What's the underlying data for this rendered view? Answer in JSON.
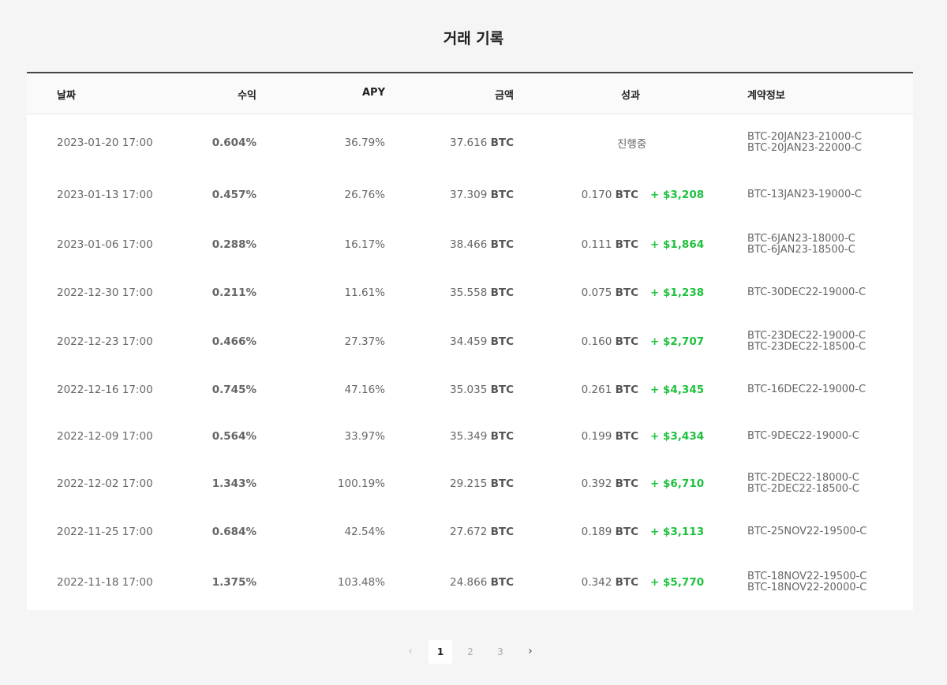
{
  "page": {
    "title": "거래 기록"
  },
  "table": {
    "headers": {
      "date": "날짜",
      "return": "수익",
      "apy": "APY",
      "amount": "금액",
      "performance": "성과",
      "contract": "계약정보"
    },
    "rows": [
      {
        "date": "2023-01-20 17:00",
        "return": "0.604%",
        "apy": "36.79%",
        "amount": "37.616",
        "amount_unit": "BTC",
        "perf_status": "진행중",
        "perf_btc": "",
        "perf_btc_unit": "",
        "perf_usd": "",
        "contracts": [
          "BTC-20JAN23-21000-C",
          "BTC-20JAN23-22000-C"
        ]
      },
      {
        "date": "2023-01-13 17:00",
        "return": "0.457%",
        "apy": "26.76%",
        "amount": "37.309",
        "amount_unit": "BTC",
        "perf_status": "",
        "perf_btc": "0.170",
        "perf_btc_unit": "BTC",
        "perf_usd": "+ $3,208",
        "contracts": [
          "BTC-13JAN23-19000-C"
        ]
      },
      {
        "date": "2023-01-06 17:00",
        "return": "0.288%",
        "apy": "16.17%",
        "amount": "38.466",
        "amount_unit": "BTC",
        "perf_status": "",
        "perf_btc": "0.111",
        "perf_btc_unit": "BTC",
        "perf_usd": "+ $1,864",
        "contracts": [
          "BTC-6JAN23-18000-C",
          "BTC-6JAN23-18500-C"
        ]
      },
      {
        "date": "2022-12-30 17:00",
        "return": "0.211%",
        "apy": "11.61%",
        "amount": "35.558",
        "amount_unit": "BTC",
        "perf_status": "",
        "perf_btc": "0.075",
        "perf_btc_unit": "BTC",
        "perf_usd": "+ $1,238",
        "contracts": [
          "BTC-30DEC22-19000-C"
        ]
      },
      {
        "date": "2022-12-23 17:00",
        "return": "0.466%",
        "apy": "27.37%",
        "amount": "34.459",
        "amount_unit": "BTC",
        "perf_status": "",
        "perf_btc": "0.160",
        "perf_btc_unit": "BTC",
        "perf_usd": "+ $2,707",
        "contracts": [
          "BTC-23DEC22-19000-C",
          "BTC-23DEC22-18500-C"
        ]
      },
      {
        "date": "2022-12-16 17:00",
        "return": "0.745%",
        "apy": "47.16%",
        "amount": "35.035",
        "amount_unit": "BTC",
        "perf_status": "",
        "perf_btc": "0.261",
        "perf_btc_unit": "BTC",
        "perf_usd": "+ $4,345",
        "contracts": [
          "BTC-16DEC22-19000-C"
        ]
      },
      {
        "date": "2022-12-09 17:00",
        "return": "0.564%",
        "apy": "33.97%",
        "amount": "35.349",
        "amount_unit": "BTC",
        "perf_status": "",
        "perf_btc": "0.199",
        "perf_btc_unit": "BTC",
        "perf_usd": "+ $3,434",
        "contracts": [
          "BTC-9DEC22-19000-C"
        ]
      },
      {
        "date": "2022-12-02 17:00",
        "return": "1.343%",
        "apy": "100.19%",
        "amount": "29.215",
        "amount_unit": "BTC",
        "perf_status": "",
        "perf_btc": "0.392",
        "perf_btc_unit": "BTC",
        "perf_usd": "+ $6,710",
        "contracts": [
          "BTC-2DEC22-18000-C",
          "BTC-2DEC22-18500-C"
        ]
      },
      {
        "date": "2022-11-25 17:00",
        "return": "0.684%",
        "apy": "42.54%",
        "amount": "27.672",
        "amount_unit": "BTC",
        "perf_status": "",
        "perf_btc": "0.189",
        "perf_btc_unit": "BTC",
        "perf_usd": "+ $3,113",
        "contracts": [
          "BTC-25NOV22-19500-C"
        ]
      },
      {
        "date": "2022-11-18 17:00",
        "return": "1.375%",
        "apy": "103.48%",
        "amount": "24.866",
        "amount_unit": "BTC",
        "perf_status": "",
        "perf_btc": "0.342",
        "perf_btc_unit": "BTC",
        "perf_usd": "+ $5,770",
        "contracts": [
          "BTC-18NOV22-19500-C",
          "BTC-18NOV22-20000-C"
        ]
      }
    ]
  },
  "pagination": {
    "prev_icon": "chevron-left-icon",
    "pages": [
      "1",
      "2",
      "3"
    ],
    "current": "1",
    "next_icon": "chevron-right-icon",
    "prev_glyph": "‹",
    "next_glyph": "›"
  },
  "colors": {
    "profit": "#1ec13d",
    "header_rule": "#444444",
    "background": "#f5f5f5"
  }
}
